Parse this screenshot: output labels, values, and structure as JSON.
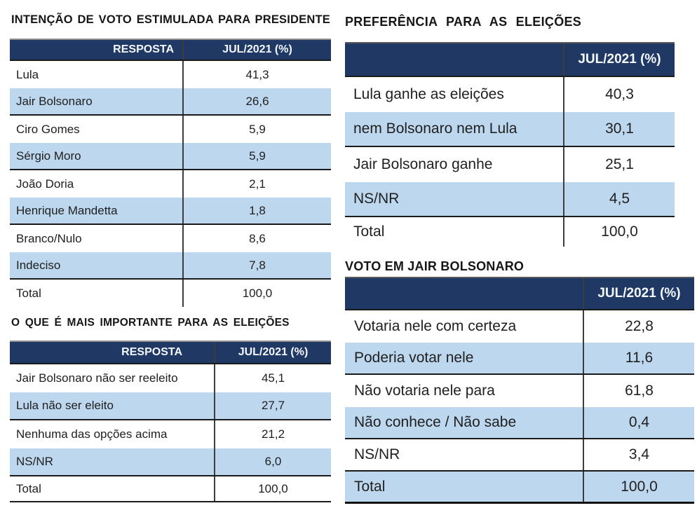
{
  "colors": {
    "header_bg": "#1f3864",
    "header_text": "#f4f7fc",
    "row_alt_bg": "#bdd7ee",
    "row_bg": "#ffffff",
    "body_text": "#1f1f1f",
    "border": "#1a1a1a"
  },
  "tables": {
    "voto_presidente": {
      "title": "INTENÇÃO DE VOTO ESTIMULADA PARA PRESIDENTE",
      "columns": [
        "RESPOSTA",
        "JUL/2021 (%)"
      ],
      "rows": [
        {
          "label": "Lula",
          "value": "41,3"
        },
        {
          "label": "Jair Bolsonaro",
          "value": "26,6"
        },
        {
          "label": "Ciro Gomes",
          "value": "5,9"
        },
        {
          "label": "Sérgio Moro",
          "value": "5,9"
        },
        {
          "label": "João Doria",
          "value": "2,1"
        },
        {
          "label": "Henrique Mandetta",
          "value": "1,8"
        },
        {
          "label": "Branco/Nulo",
          "value": "8,6"
        },
        {
          "label": "Indeciso",
          "value": "7,8"
        },
        {
          "label": "Total",
          "value": "100,0"
        }
      ]
    },
    "preferencia": {
      "title": "PREFERÊNCIA PARA AS ELEIÇÕES",
      "columns": [
        "",
        "JUL/2021 (%)"
      ],
      "rows": [
        {
          "label": "Lula ganhe as eleições",
          "value": "40,3"
        },
        {
          "label": "nem Bolsonaro nem Lula",
          "value": "30,1"
        },
        {
          "label": "Jair Bolsonaro ganhe",
          "value": "25,1"
        },
        {
          "label": "NS/NR",
          "value": "4,5"
        },
        {
          "label": "Total",
          "value": "100,0"
        }
      ]
    },
    "importante": {
      "title": "O QUE É MAIS IMPORTANTE PARA AS ELEIÇÕES",
      "columns": [
        "RESPOSTA",
        "JUL/2021 (%)"
      ],
      "rows": [
        {
          "label": "Jair Bolsonaro não ser reeleito",
          "value": "45,1"
        },
        {
          "label": "Lula não ser eleito",
          "value": "27,7"
        },
        {
          "label": "Nenhuma das opções acima",
          "value": "21,2"
        },
        {
          "label": "NS/NR",
          "value": "6,0"
        },
        {
          "label": "Total",
          "value": "100,0"
        }
      ]
    },
    "voto_bolsonaro": {
      "title": "VOTO EM JAIR BOLSONARO",
      "columns": [
        "",
        "JUL/2021 (%)"
      ],
      "rows": [
        {
          "label": "Votaria nele com certeza",
          "value": "22,8"
        },
        {
          "label": "Poderia votar nele",
          "value": "11,6"
        },
        {
          "label": "Não votaria nele para",
          "value": "61,8"
        },
        {
          "label": "Não conhece / Não sabe",
          "value": "0,4"
        },
        {
          "label": "NS/NR",
          "value": "3,4"
        },
        {
          "label": "Total",
          "value": "100,0"
        }
      ]
    }
  }
}
